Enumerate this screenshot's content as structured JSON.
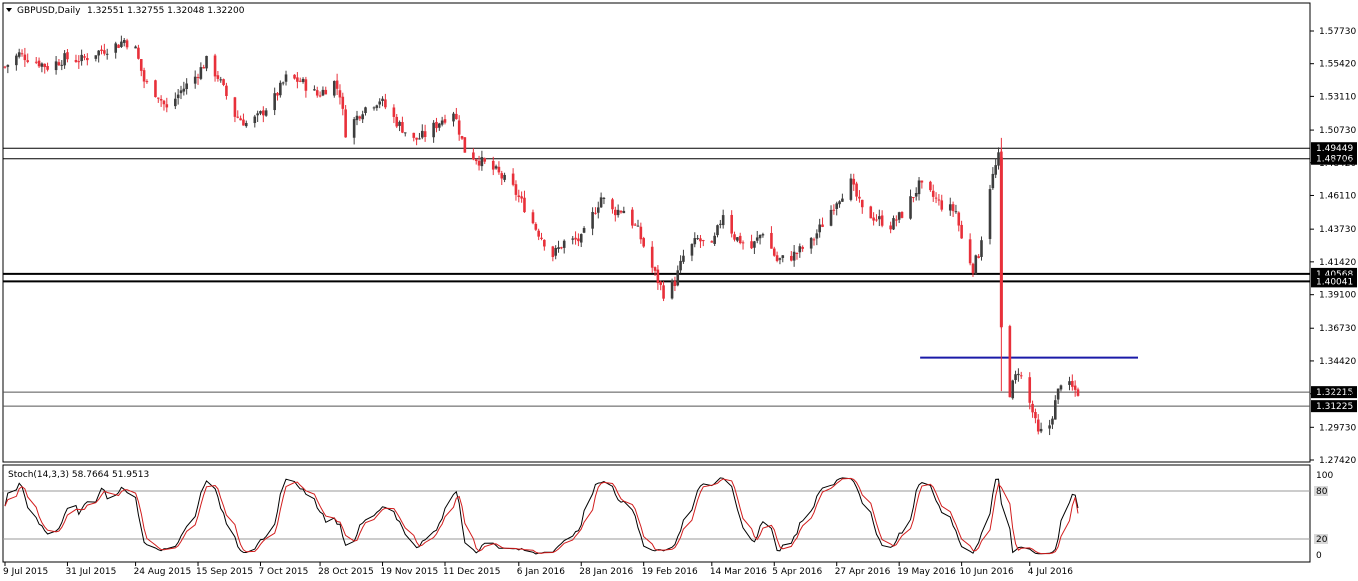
{
  "chart_header": {
    "symbol_tf": "GBPUSD,Daily",
    "ohlc": "1.32551 1.32755 1.32048 1.32200"
  },
  "stoch_header": "Stoch(14,3,3) 58.7664 51.9513",
  "colors": {
    "bull": "#3d3d3d",
    "bear": "#e8303a",
    "blue_line": "#1a1aa8",
    "stoch_main": "#000000",
    "stoch_signal": "#d21e1e",
    "level_line": "#9a9a9a"
  },
  "chart_data": {
    "type": "candlestick",
    "x_labels": [
      "9 Jul 2015",
      "31 Jul 2015",
      "24 Aug 2015",
      "15 Sep 2015",
      "7 Oct 2015",
      "28 Oct 2015",
      "19 Nov 2015",
      "11 Dec 2015",
      "6 Jan 2016",
      "28 Jan 2016",
      "19 Feb 2016",
      "14 Mar 2016",
      "5 Apr 2016",
      "27 Apr 2016",
      "19 May 2016",
      "10 Jun 2016",
      "4 Jul 2016"
    ],
    "y_ticks": [
      "1.57730",
      "1.55420",
      "1.53110",
      "1.50730",
      "1.48420",
      "1.46110",
      "1.43730",
      "1.41420",
      "1.39100",
      "1.36730",
      "1.34420",
      "1.32100",
      "1.29730",
      "1.27420"
    ],
    "ylim": [
      1.2742,
      1.5773
    ],
    "horizontal_levels": [
      {
        "label": "1.49449",
        "value": 1.49449
      },
      {
        "label": "1.48706",
        "value": 1.48706
      },
      {
        "label": "1.40568",
        "value": 1.40568
      },
      {
        "label": "1.40041",
        "value": 1.40041
      },
      {
        "label": "1.32215",
        "value": 1.32215
      },
      {
        "label": "1.31225",
        "value": 1.31225
      }
    ],
    "blue_resistance": {
      "value": 1.3465,
      "from_date": "2016-06-13",
      "to_date": "2016-07-21"
    },
    "current_price": "1.32200",
    "close_path": [
      [
        "2015-07-06",
        1.548
      ],
      [
        "2015-07-09",
        1.552
      ],
      [
        "2015-07-14",
        1.561
      ],
      [
        "2015-07-20",
        1.556
      ],
      [
        "2015-07-24",
        1.552
      ],
      [
        "2015-07-30",
        1.558
      ],
      [
        "2015-08-05",
        1.557
      ],
      [
        "2015-08-10",
        1.562
      ],
      [
        "2015-08-18",
        1.568
      ],
      [
        "2015-08-20",
        1.571
      ],
      [
        "2015-08-24",
        1.564
      ],
      [
        "2015-08-27",
        1.542
      ],
      [
        "2015-09-01",
        1.532
      ],
      [
        "2015-09-04",
        1.522
      ],
      [
        "2015-09-09",
        1.535
      ],
      [
        "2015-09-14",
        1.545
      ],
      [
        "2015-09-18",
        1.556
      ],
      [
        "2015-09-22",
        1.545
      ],
      [
        "2015-09-28",
        1.518
      ],
      [
        "2015-10-02",
        1.512
      ],
      [
        "2015-10-06",
        1.516
      ],
      [
        "2015-10-12",
        1.53
      ],
      [
        "2015-10-16",
        1.544
      ],
      [
        "2015-10-21",
        1.542
      ],
      [
        "2015-10-27",
        1.532
      ],
      [
        "2015-11-02",
        1.541
      ],
      [
        "2015-11-04",
        1.533
      ],
      [
        "2015-11-06",
        1.506
      ],
      [
        "2015-11-12",
        1.522
      ],
      [
        "2015-11-18",
        1.529
      ],
      [
        "2015-11-24",
        1.513
      ],
      [
        "2015-11-30",
        1.5
      ],
      [
        "2015-12-04",
        1.504
      ],
      [
        "2015-12-10",
        1.515
      ],
      [
        "2015-12-14",
        1.521
      ],
      [
        "2015-12-18",
        1.493
      ],
      [
        "2015-12-23",
        1.486
      ],
      [
        "2015-12-29",
        1.478
      ],
      [
        "2016-01-04",
        1.466
      ],
      [
        "2016-01-08",
        1.453
      ],
      [
        "2016-01-12",
        1.438
      ],
      [
        "2016-01-18",
        1.419
      ],
      [
        "2016-01-22",
        1.428
      ],
      [
        "2016-01-28",
        1.43
      ],
      [
        "2016-02-04",
        1.46
      ],
      [
        "2016-02-08",
        1.45
      ],
      [
        "2016-02-12",
        1.451
      ],
      [
        "2016-02-17",
        1.436
      ],
      [
        "2016-02-22",
        1.41
      ],
      [
        "2016-02-26",
        1.392
      ],
      [
        "2016-03-01",
        1.4
      ],
      [
        "2016-03-04",
        1.418
      ],
      [
        "2016-03-09",
        1.43
      ],
      [
        "2016-03-14",
        1.424
      ],
      [
        "2016-03-18",
        1.449
      ],
      [
        "2016-03-22",
        1.432
      ],
      [
        "2016-03-28",
        1.424
      ],
      [
        "2016-04-01",
        1.436
      ],
      [
        "2016-04-06",
        1.415
      ],
      [
        "2016-04-11",
        1.418
      ],
      [
        "2016-04-18",
        1.428
      ],
      [
        "2016-04-22",
        1.441
      ],
      [
        "2016-04-27",
        1.458
      ],
      [
        "2016-05-02",
        1.47
      ],
      [
        "2016-05-06",
        1.45
      ],
      [
        "2016-05-11",
        1.445
      ],
      [
        "2016-05-16",
        1.44
      ],
      [
        "2016-05-20",
        1.448
      ],
      [
        "2016-05-26",
        1.468
      ],
      [
        "2016-05-31",
        1.46
      ],
      [
        "2016-06-03",
        1.454
      ],
      [
        "2016-06-08",
        1.45
      ],
      [
        "2016-06-10",
        1.43
      ],
      [
        "2016-06-14",
        1.41
      ],
      [
        "2016-06-16",
        1.42
      ],
      [
        "2016-06-20",
        1.468
      ],
      [
        "2016-06-23",
        1.488
      ],
      [
        "2016-06-24",
        1.368
      ],
      [
        "2016-06-27",
        1.322
      ],
      [
        "2016-06-30",
        1.338
      ],
      [
        "2016-07-05",
        1.308
      ],
      [
        "2016-07-07",
        1.292
      ],
      [
        "2016-07-11",
        1.299
      ],
      [
        "2016-07-15",
        1.33
      ],
      [
        "2016-07-21",
        1.322
      ]
    ],
    "stochastic": {
      "name": "Stoch(14,3,3)",
      "main": 58.7664,
      "signal": 51.9513,
      "levels": [
        80,
        20
      ],
      "scale_labels": [
        "100",
        "80",
        "20",
        "0"
      ]
    }
  }
}
